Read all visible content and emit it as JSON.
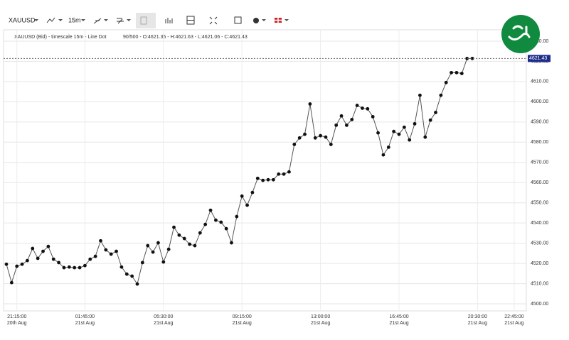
{
  "toolbar": {
    "symbol": "XAUUSD",
    "timeframe": "15m"
  },
  "chart_data": {
    "type": "line",
    "info": "XAUUSD (Bid) - timescale 15m - Line Dot",
    "stats": "90/500 - O:4621.35 - H:4621.63 - L:4621.06 - C:4621.43",
    "categories": [
      null,
      null,
      {
        "time": "21:15:00",
        "date": "20th Aug"
      },
      null,
      null,
      null,
      null,
      null,
      null,
      null,
      null,
      null,
      null,
      null,
      null,
      {
        "time": "01:45:00",
        "date": "21st Aug"
      },
      null,
      null,
      null,
      null,
      null,
      null,
      null,
      null,
      null,
      null,
      null,
      null,
      null,
      null,
      {
        "time": "05:30:00",
        "date": "21st Aug"
      },
      null,
      null,
      null,
      null,
      null,
      null,
      null,
      null,
      null,
      null,
      null,
      null,
      null,
      null,
      {
        "time": "09:15:00",
        "date": "21st Aug"
      },
      null,
      null,
      null,
      null,
      null,
      null,
      null,
      null,
      null,
      null,
      null,
      null,
      null,
      null,
      {
        "time": "13:00:00",
        "date": "21st Aug"
      },
      null,
      null,
      null,
      null,
      null,
      null,
      null,
      null,
      null,
      null,
      null,
      null,
      null,
      null,
      {
        "time": "16:45:00",
        "date": "21st Aug"
      },
      null,
      null,
      null,
      null,
      null,
      null,
      null,
      null,
      null,
      null,
      null,
      null,
      null,
      null,
      {
        "time": "20:30:00",
        "date": "21st Aug"
      },
      null,
      null,
      null,
      null,
      null,
      null,
      {
        "time": "22:45:00",
        "date": "21st Aug"
      }
    ],
    "series": [
      {
        "name": "XAUUSD",
        "color": "#555555",
        "values": [
          4519.6,
          4510.5,
          4518.6,
          4519.6,
          4521.4,
          4527.4,
          4522.5,
          4526.0,
          4528.4,
          4522.1,
          4520.4,
          4517.9,
          4518.2,
          4517.9,
          4517.9,
          4518.9,
          4522.1,
          4523.5,
          4531.2,
          4526.7,
          4524.6,
          4526.0,
          4518.2,
          4514.7,
          4513.7,
          4509.8,
          4520.4,
          4528.8,
          4525.6,
          4530.2,
          4520.7,
          4527.0,
          4537.9,
          4534.0,
          4532.3,
          4529.5,
          4528.8,
          4535.1,
          4539.3,
          4546.3,
          4541.4,
          4540.4,
          4537.2,
          4530.2,
          4543.2,
          4553.3,
          4548.8,
          4555.1,
          4562.1,
          4561.1,
          4561.4,
          4561.4,
          4564.2,
          4564.2,
          4565.3,
          4578.9,
          4582.1,
          4583.9,
          4598.9,
          4582.1,
          4583.2,
          4582.5,
          4578.9,
          4588.4,
          4593.0,
          4588.4,
          4591.2,
          4598.2,
          4596.8,
          4596.5,
          4592.6,
          4584.6,
          4573.7,
          4577.5,
          4585.3,
          4583.9,
          4587.4,
          4581.1,
          4589.1,
          4603.2,
          4582.5,
          4590.9,
          4594.7,
          4603.2,
          4609.5,
          4614.4,
          4614.4,
          4614.0,
          4621.4,
          4621.43,
          null,
          null,
          null,
          null,
          null,
          null,
          null,
          null
        ]
      }
    ],
    "ylim": [
      4496.5,
      4635.6
    ],
    "yticks": [
      {
        "value": 4500,
        "label": "4500.00"
      },
      {
        "value": 4510,
        "label": "4510.00"
      },
      {
        "value": 4520,
        "label": "4520.00"
      },
      {
        "value": 4530,
        "label": "4530.00"
      },
      {
        "value": 4540,
        "label": "4540.00"
      },
      {
        "value": 4550,
        "label": "4550.00"
      },
      {
        "value": 4560,
        "label": "4560.00"
      },
      {
        "value": 4570,
        "label": "4570.00"
      },
      {
        "value": 4580,
        "label": "4580.00"
      },
      {
        "value": 4590,
        "label": "4590.00"
      },
      {
        "value": 4600,
        "label": "4600.00"
      },
      {
        "value": 4610,
        "label": "4610.00"
      },
      {
        "value": 4620,
        "label": "4620.00"
      },
      {
        "value": 4630,
        "label": "4630.00"
      }
    ],
    "grid": true
  }
}
